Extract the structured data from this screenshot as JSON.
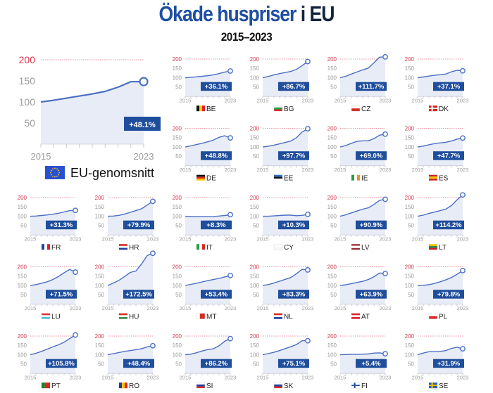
{
  "header": {
    "title_main": "Ökade huspriser",
    "title_tail": "i EU",
    "subtitle": "2015–2023"
  },
  "colors": {
    "line": "#4a6fc4",
    "fill": "#e8ecf6",
    "badge": "#1f4e9c",
    "ref_line": "#d9364f",
    "tick": "#9a9a9a",
    "title": "#1f4fa3"
  },
  "chart_data": {
    "type": "line",
    "layout": "small-multiples",
    "x": [
      2015,
      2016,
      2017,
      2018,
      2019,
      2020,
      2021,
      2022,
      2023
    ],
    "x_tick_labels": [
      "2015",
      "2023"
    ],
    "y_tick_labels": [
      "200",
      "150",
      "100",
      "50"
    ],
    "ylim": [
      0,
      200
    ],
    "reference_line": 200,
    "main": {
      "label": "EU-genomsnitt",
      "change": "+48.1%",
      "flag": {
        "type": "eu",
        "colors": [
          "#2a4fd0",
          "#f5d000"
        ]
      },
      "values": [
        100,
        104,
        109,
        114,
        119,
        125,
        135,
        148,
        148.1
      ]
    },
    "countries": [
      {
        "code": "BE",
        "change": "+36.1%",
        "flag": {
          "type": "v",
          "colors": [
            "#111",
            "#f5d000",
            "#e0202f"
          ]
        },
        "values": [
          100,
          102,
          105,
          108,
          111,
          115,
          122,
          130,
          136.1
        ]
      },
      {
        "code": "BG",
        "change": "+86.7%",
        "flag": {
          "type": "h",
          "colors": [
            "#fff",
            "#2a9a4a",
            "#d62a20"
          ]
        },
        "values": [
          100,
          107,
          115,
          122,
          128,
          134,
          145,
          165,
          186.7
        ]
      },
      {
        "code": "CZ",
        "change": "+111.7%",
        "flag": {
          "type": "h",
          "colors": [
            "#fff",
            "#d62a20"
          ]
        },
        "values": [
          100,
          108,
          120,
          131,
          142,
          152,
          180,
          210,
          211.7
        ]
      },
      {
        "code": "DK",
        "change": "+37.1%",
        "flag": {
          "type": "cross",
          "colors": [
            "#d62a20",
            "#fff"
          ]
        },
        "values": [
          100,
          104,
          109,
          113,
          116,
          120,
          132,
          140,
          137.1
        ]
      },
      {
        "code": "DE",
        "change": "+48.8%",
        "flag": {
          "type": "h",
          "colors": [
            "#111",
            "#d62a20",
            "#f5c400"
          ]
        },
        "values": [
          100,
          106,
          113,
          120,
          128,
          137,
          152,
          160,
          148.8
        ]
      },
      {
        "code": "EE",
        "change": "+97.7%",
        "flag": {
          "type": "h",
          "colors": [
            "#2f72c9",
            "#111",
            "#fff"
          ]
        },
        "values": [
          100,
          104,
          110,
          117,
          124,
          132,
          150,
          180,
          197.7
        ]
      },
      {
        "code": "IE",
        "change": "+69.0%",
        "flag": {
          "type": "v",
          "colors": [
            "#2a9a4a",
            "#fff",
            "#f0922a"
          ]
        },
        "values": [
          100,
          108,
          120,
          130,
          133,
          133,
          145,
          163,
          169.0
        ]
      },
      {
        "code": "ES",
        "change": "+47.7%",
        "flag": {
          "type": "h3",
          "colors": [
            "#c8202a",
            "#f5c400",
            "#c8202a"
          ]
        },
        "values": [
          100,
          105,
          112,
          118,
          122,
          125,
          132,
          142,
          147.7
        ]
      },
      {
        "code": "FR",
        "change": "+31.3%",
        "flag": {
          "type": "v",
          "colors": [
            "#1f3fa0",
            "#fff",
            "#e0202f"
          ]
        },
        "values": [
          100,
          101,
          104,
          107,
          111,
          116,
          123,
          130,
          131.3
        ]
      },
      {
        "code": "HR",
        "change": "+79.9%",
        "flag": {
          "type": "h",
          "colors": [
            "#d62a20",
            "#fff",
            "#1f3fa0"
          ]
        },
        "values": [
          100,
          101,
          105,
          112,
          121,
          130,
          140,
          160,
          179.9
        ]
      },
      {
        "code": "IT",
        "change": "+8.3%",
        "flag": {
          "type": "v",
          "colors": [
            "#2a9a4a",
            "#fff",
            "#d62a20"
          ]
        },
        "values": [
          100,
          99,
          98,
          98,
          98,
          99,
          101,
          104,
          108.3
        ]
      },
      {
        "code": "CY",
        "change": "+10.3%",
        "flag": {
          "type": "h",
          "colors": [
            "#fff",
            "#f7f7f7"
          ]
        },
        "values": [
          100,
          100,
          102,
          104,
          106,
          106,
          103,
          105,
          110.3
        ]
      },
      {
        "code": "LV",
        "change": "+90.9%",
        "flag": {
          "type": "h3",
          "colors": [
            "#9e2a35",
            "#fff",
            "#9e2a35"
          ]
        },
        "values": [
          100,
          108,
          118,
          128,
          138,
          145,
          163,
          185,
          190.9
        ]
      },
      {
        "code": "LT",
        "change": "+114.2%",
        "flag": {
          "type": "h",
          "colors": [
            "#f5c400",
            "#2a8a4a",
            "#c8202a"
          ]
        },
        "values": [
          100,
          106,
          115,
          122,
          130,
          138,
          157,
          188,
          214.2
        ]
      },
      {
        "code": "LU",
        "change": "+71.5%",
        "flag": {
          "type": "h",
          "colors": [
            "#e0303a",
            "#fff",
            "#5bb8ea"
          ]
        },
        "values": [
          100,
          105,
          112,
          120,
          132,
          148,
          168,
          186,
          171.5
        ]
      },
      {
        "code": "HU",
        "change": "+172.5%",
        "flag": {
          "type": "h",
          "colors": [
            "#d62a20",
            "#fff",
            "#3a8a4a"
          ]
        },
        "values": [
          100,
          113,
          128,
          148,
          170,
          178,
          215,
          260,
          272.5
        ]
      },
      {
        "code": "MT",
        "change": "+53.4%",
        "flag": {
          "type": "v2",
          "colors": [
            "#fff",
            "#d62a20"
          ]
        },
        "values": [
          100,
          106,
          112,
          119,
          126,
          132,
          138,
          146,
          153.4
        ]
      },
      {
        "code": "NL",
        "change": "+83.3%",
        "flag": {
          "type": "h",
          "colors": [
            "#d62a20",
            "#fff",
            "#1f3fa0"
          ]
        },
        "values": [
          100,
          105,
          113,
          123,
          133,
          143,
          163,
          187,
          183.3
        ]
      },
      {
        "code": "AT",
        "change": "+63.9%",
        "flag": {
          "type": "h",
          "colors": [
            "#e0202f",
            "#fff",
            "#e0202f"
          ]
        },
        "values": [
          100,
          104,
          110,
          116,
          122,
          132,
          147,
          167,
          163.9
        ]
      },
      {
        "code": "PL",
        "change": "+79.8%",
        "flag": {
          "type": "h",
          "colors": [
            "#fff",
            "#d62a20"
          ]
        },
        "values": [
          100,
          101,
          104,
          111,
          120,
          130,
          143,
          160,
          179.8
        ]
      },
      {
        "code": "PT",
        "change": "+105.8%",
        "flag": {
          "type": "v2",
          "colors": [
            "#1f7a2a",
            "#d62a20"
          ]
        },
        "values": [
          100,
          108,
          118,
          130,
          142,
          153,
          167,
          187,
          205.8
        ]
      },
      {
        "code": "RO",
        "change": "+48.4%",
        "flag": {
          "type": "v",
          "colors": [
            "#1f3fa0",
            "#f5c400",
            "#d62a20"
          ]
        },
        "values": [
          100,
          106,
          112,
          118,
          122,
          127,
          132,
          142,
          148.4
        ]
      },
      {
        "code": "SI",
        "change": "+86.2%",
        "flag": {
          "type": "h",
          "colors": [
            "#fff",
            "#1f3fa0",
            "#d62a20"
          ]
        },
        "values": [
          100,
          103,
          111,
          120,
          128,
          132,
          148,
          172,
          186.2
        ]
      },
      {
        "code": "SK",
        "change": "+75.1%",
        "flag": {
          "type": "h",
          "colors": [
            "#fff",
            "#1f3fa0",
            "#d62a20"
          ]
        },
        "values": [
          100,
          106,
          113,
          122,
          133,
          143,
          155,
          175,
          175.1
        ]
      },
      {
        "code": "FI",
        "change": "+5.4%",
        "flag": {
          "type": "cross",
          "colors": [
            "#fff",
            "#1f4fa3"
          ]
        },
        "values": [
          100,
          101,
          102,
          102,
          103,
          104,
          109,
          110,
          105.4
        ]
      },
      {
        "code": "SE",
        "change": "+31.9%",
        "flag": {
          "type": "cross",
          "colors": [
            "#2a62b8",
            "#f5c400"
          ]
        },
        "values": [
          100,
          109,
          116,
          116,
          118,
          122,
          134,
          140,
          131.9
        ]
      }
    ]
  }
}
